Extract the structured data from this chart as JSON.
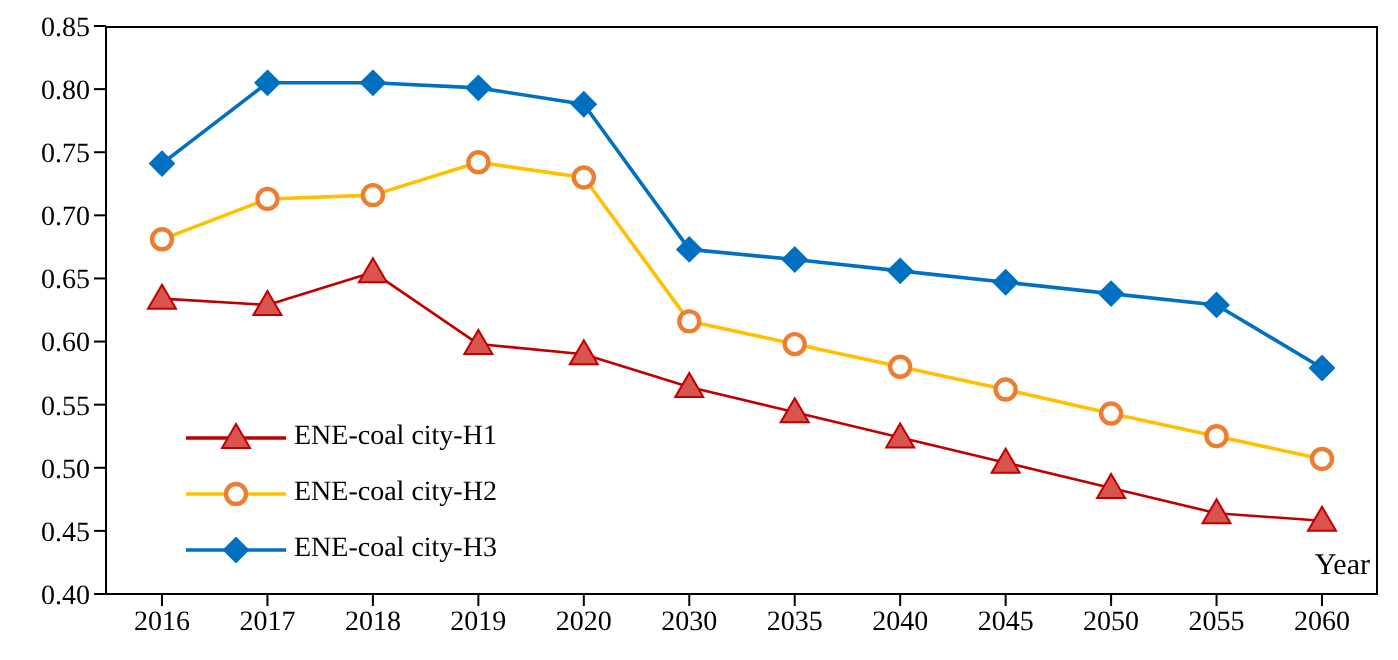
{
  "chart_data": {
    "type": "line",
    "xlabel": "Year",
    "categories": [
      "2016",
      "2017",
      "2018",
      "2019",
      "2020",
      "2030",
      "2035",
      "2040",
      "2045",
      "2050",
      "2055",
      "2060"
    ],
    "ylim": [
      0.4,
      0.85
    ],
    "yticks": [
      {
        "value": 0.4,
        "label": "0.40"
      },
      {
        "value": 0.45,
        "label": "0.45"
      },
      {
        "value": 0.5,
        "label": "0.50"
      },
      {
        "value": 0.55,
        "label": "0.55"
      },
      {
        "value": 0.6,
        "label": "0.60"
      },
      {
        "value": 0.65,
        "label": "0.65"
      },
      {
        "value": 0.7,
        "label": "0.70"
      },
      {
        "value": 0.75,
        "label": "0.75"
      },
      {
        "value": 0.8,
        "label": "0.80"
      },
      {
        "value": 0.85,
        "label": "0.85"
      }
    ],
    "grid": false,
    "legend": "bottom left",
    "series": [
      {
        "name": "ENE-coal city-H1",
        "color": "#c00000",
        "marker": "triangle",
        "values": [
          0.634,
          0.629,
          0.655,
          0.598,
          0.59,
          0.564,
          0.544,
          0.524,
          0.504,
          0.484,
          0.464,
          0.458
        ]
      },
      {
        "name": "ENE-coal city-H2",
        "color": "#ffc000",
        "marker": "circle",
        "colors": [
          "#ed7d31",
          "#ed7d31",
          "#ed7d31",
          "#ed7d31",
          "#ed7d31",
          "#ed7d31",
          "#ed7d31",
          "#ed7d31",
          "#ed7d31",
          "#ed7d31",
          "#ed7d31",
          "#ed7d31"
        ],
        "values": [
          0.681,
          0.713,
          0.716,
          0.742,
          0.73,
          0.616,
          0.598,
          0.58,
          0.562,
          0.543,
          0.525,
          0.507
        ]
      },
      {
        "name": "ENE-coal city-H3",
        "color": "#0070c0",
        "marker": "diamond",
        "values": [
          0.741,
          0.805,
          0.805,
          0.801,
          0.788,
          0.673,
          0.665,
          0.656,
          0.647,
          0.638,
          0.629,
          0.579
        ]
      }
    ]
  }
}
